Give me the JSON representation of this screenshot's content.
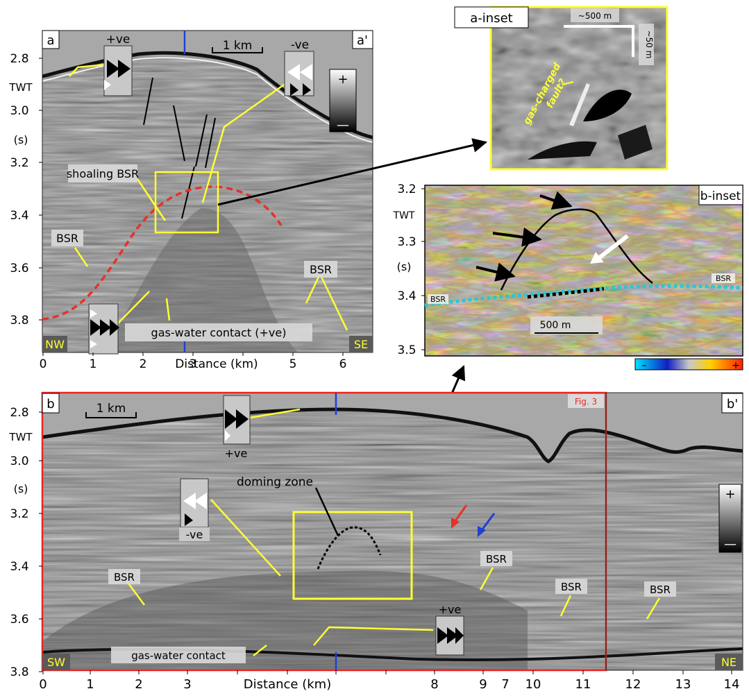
{
  "panel_a": {
    "label": "a",
    "label_end": "a'",
    "y_ticks": [
      "2.8",
      "3.0",
      "3.2",
      "3.4",
      "3.6",
      "3.8"
    ],
    "y_unit_top": "TWT",
    "y_unit_bottom": "(s)",
    "x_ticks": [
      "0",
      "1",
      "2",
      "3",
      "4",
      "5",
      "6"
    ],
    "x_title": "Distance (km)",
    "scale_bar": "1 km",
    "pos_polarity": "+ve",
    "neg_polarity": "-ve",
    "shoaling_bsr": "shoaling BSR",
    "bsr": "BSR",
    "gas_water_contact": "gas-water contact (+ve)",
    "nw": "NW",
    "se": "SE",
    "colorbar_plus": "+",
    "colorbar_minus": "—"
  },
  "inset_a": {
    "label": "a-inset",
    "scale_h": "~500 m",
    "scale_v": "~50 m",
    "fault_line1": "gas-charged",
    "fault_line2": "fault?"
  },
  "inset_b": {
    "label": "b-inset",
    "y_ticks": [
      "3.2",
      "3.3",
      "3.4",
      "3.5"
    ],
    "y_unit_top": "TWT",
    "y_unit_bottom": "(s)",
    "bsr": "BSR",
    "scale_bar": "500 m",
    "colorbar_minus": "–",
    "colorbar_plus": "+"
  },
  "panel_b": {
    "label": "b",
    "label_end": "b'",
    "y_ticks": [
      "2.8",
      "3.0",
      "3.2",
      "3.4",
      "3.6",
      "3.8"
    ],
    "y_unit_top": "TWT",
    "y_unit_bottom": "(s)",
    "x_ticks": [
      "0",
      "1",
      "2",
      "3",
      "8",
      "9",
      "7",
      "10",
      "11",
      "12",
      "13",
      "14"
    ],
    "x_title": "Distance (km)",
    "scale_bar": "1 km",
    "fig_ref": "Fig. 3",
    "pos_polarity": "+ve",
    "neg_polarity": "-ve",
    "doming_zone": "doming zone",
    "bsr": "BSR",
    "gas_water_contact": "gas-water contact",
    "sw": "SW",
    "ne": "NE",
    "colorbar_plus": "+",
    "colorbar_minus": "—"
  },
  "colors": {
    "yellow": "#ffff33",
    "red_frame": "#ee2222",
    "dash_red": "#e8302a",
    "blue_marker": "#1f3fd8",
    "cyan_bsr": "#28c8d8",
    "label_bg": "#d9d9d9"
  }
}
